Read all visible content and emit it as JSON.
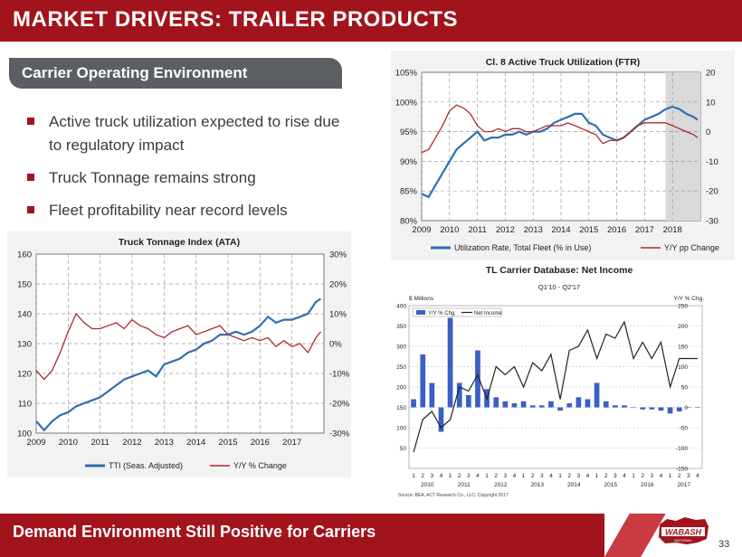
{
  "slide": {
    "title": "MARKET DRIVERS: TRAILER PRODUCTS",
    "subheading": "Carrier Operating Environment",
    "bullets": [
      "Active truck utilization expected to rise due to regulatory impact",
      "Truck Tonnage remains strong",
      "Fleet profitability near record levels"
    ],
    "footer": "Demand Environment Still Positive for Carriers",
    "page_number": "33",
    "logo_text": "WABASH",
    "logo_sub": "NATIONAL",
    "colors": {
      "brand_red": "#a1141c",
      "line_blue": "#2e6fb0",
      "line_red": "#b0282e",
      "bar_blue": "#3a5fc7"
    }
  },
  "chart_data": [
    {
      "type": "line",
      "title": "Truck Tonnage Index (ATA)",
      "x_range": [
        2009,
        2018
      ],
      "x_ticks": [
        "2009",
        "2010",
        "2011",
        "2012",
        "2013",
        "2014",
        "2015",
        "2016",
        "2017"
      ],
      "y_left_ticks": [
        "100",
        "110",
        "120",
        "130",
        "140",
        "150",
        "160"
      ],
      "y_left_range": [
        100,
        160
      ],
      "y_right_ticks": [
        "-30%",
        "-20%",
        "-10%",
        "0%",
        "10%",
        "20%",
        "30%"
      ],
      "y_right_range": [
        -30,
        30
      ],
      "grid": true,
      "legend_position": "bottom",
      "series": [
        {
          "name": "TTI (Seas. Adjusted)",
          "axis": "left",
          "color": "#2e6fb0",
          "x": [
            2009.0,
            2009.25,
            2009.5,
            2009.75,
            2010.0,
            2010.25,
            2010.5,
            2010.75,
            2011.0,
            2011.25,
            2011.5,
            2011.75,
            2012.0,
            2012.25,
            2012.5,
            2012.75,
            2013.0,
            2013.25,
            2013.5,
            2013.75,
            2014.0,
            2014.25,
            2014.5,
            2014.75,
            2015.0,
            2015.25,
            2015.5,
            2015.75,
            2016.0,
            2016.25,
            2016.5,
            2016.75,
            2017.0,
            2017.25,
            2017.5,
            2017.75,
            2017.9
          ],
          "y": [
            104,
            101,
            104,
            106,
            107,
            109,
            110,
            111,
            112,
            114,
            116,
            118,
            119,
            120,
            121,
            119,
            123,
            124,
            125,
            127,
            128,
            130,
            131,
            133,
            133,
            134,
            133,
            134,
            136,
            139,
            137,
            138,
            138,
            139,
            140,
            144,
            145
          ]
        },
        {
          "name": "Y/Y % Change",
          "axis": "right",
          "color": "#b0282e",
          "x": [
            2009.0,
            2009.25,
            2009.5,
            2009.75,
            2010.0,
            2010.25,
            2010.5,
            2010.75,
            2011.0,
            2011.25,
            2011.5,
            2011.75,
            2012.0,
            2012.25,
            2012.5,
            2012.75,
            2013.0,
            2013.25,
            2013.5,
            2013.75,
            2014.0,
            2014.25,
            2014.5,
            2014.75,
            2015.0,
            2015.25,
            2015.5,
            2015.75,
            2016.0,
            2016.25,
            2016.5,
            2016.75,
            2017.0,
            2017.25,
            2017.5,
            2017.75,
            2017.9
          ],
          "y": [
            -9,
            -12,
            -9,
            -3,
            4,
            10,
            7,
            5,
            5,
            6,
            7,
            5,
            8,
            6,
            5,
            3,
            2,
            4,
            5,
            6,
            3,
            4,
            5,
            6,
            3,
            2,
            1,
            2,
            1,
            2,
            -1,
            1,
            -1,
            0,
            -3,
            2,
            4
          ]
        }
      ]
    },
    {
      "type": "line",
      "title": "Cl. 8 Active Truck Utilization (FTR)",
      "x_range": [
        2009,
        2019
      ],
      "x_ticks": [
        "2009",
        "2010",
        "2011",
        "2012",
        "2013",
        "2014",
        "2015",
        "2016",
        "2017",
        "2018"
      ],
      "y_left_ticks": [
        "80%",
        "85%",
        "90%",
        "95%",
        "100%",
        "105%"
      ],
      "y_left_range": [
        80,
        105
      ],
      "y_right_ticks": [
        "-30",
        "-20",
        "-10",
        "0",
        "10",
        "20"
      ],
      "y_right_range": [
        -30,
        20
      ],
      "forecast_shaded_from": 2017.75,
      "grid": true,
      "legend_position": "bottom",
      "series": [
        {
          "name": "Utilization Rate, Total Fleet (% in Use)",
          "axis": "left",
          "color": "#2e6fb0",
          "x": [
            2009.0,
            2009.25,
            2009.5,
            2009.75,
            2010.0,
            2010.25,
            2010.5,
            2010.75,
            2011.0,
            2011.25,
            2011.5,
            2011.75,
            2012.0,
            2012.25,
            2012.5,
            2012.75,
            2013.0,
            2013.25,
            2013.5,
            2013.75,
            2014.0,
            2014.25,
            2014.5,
            2014.75,
            2015.0,
            2015.25,
            2015.5,
            2015.75,
            2016.0,
            2016.25,
            2016.5,
            2016.75,
            2017.0,
            2017.25,
            2017.5,
            2017.75,
            2018.0,
            2018.25,
            2018.5,
            2018.75,
            2018.9
          ],
          "y": [
            84.5,
            84,
            86,
            88,
            90,
            92,
            93,
            94,
            95,
            93.5,
            94,
            94,
            94.5,
            94.5,
            95,
            94.5,
            95,
            95,
            95.5,
            96.5,
            97,
            97.5,
            98,
            98,
            96.5,
            96,
            94.5,
            94,
            93.5,
            94,
            95,
            96,
            97,
            97.5,
            98,
            98.8,
            99.2,
            98.8,
            98,
            97.5,
            97
          ]
        },
        {
          "name": "Y/Y pp Change",
          "axis": "right",
          "color": "#b0282e",
          "x": [
            2009.0,
            2009.25,
            2009.5,
            2009.75,
            2010.0,
            2010.25,
            2010.5,
            2010.75,
            2011.0,
            2011.25,
            2011.5,
            2011.75,
            2012.0,
            2012.25,
            2012.5,
            2012.75,
            2013.0,
            2013.25,
            2013.5,
            2013.75,
            2014.0,
            2014.25,
            2014.5,
            2014.75,
            2015.0,
            2015.25,
            2015.5,
            2015.75,
            2016.0,
            2016.25,
            2016.5,
            2016.75,
            2017.0,
            2017.25,
            2017.5,
            2017.75,
            2018.0,
            2018.25,
            2018.5,
            2018.75,
            2018.9
          ],
          "y": [
            -7,
            -6,
            -2,
            2,
            7,
            9,
            8,
            6,
            2,
            0,
            0,
            1,
            0,
            1,
            1,
            0,
            0,
            1,
            2,
            2,
            2,
            3,
            2,
            1,
            0,
            -1,
            -4,
            -3,
            -3,
            -2,
            0,
            2,
            3,
            3,
            3,
            3,
            2,
            1,
            0,
            -1,
            -2
          ]
        }
      ]
    },
    {
      "type": "bar",
      "title": "TL Carrier Database: Net Income",
      "subtitle": "Q1'10 - Q2'17",
      "left_axis_label": "$ Millions",
      "right_axis_label": "Y/Y % Chg.",
      "source": "Source: BEA, ACT Research Co., LLC: Copyright 2017",
      "categories": [
        "1",
        "2",
        "3",
        "4",
        "1",
        "2",
        "3",
        "4",
        "1",
        "2",
        "3",
        "4",
        "1",
        "2",
        "3",
        "4",
        "1",
        "2",
        "3",
        "4",
        "1",
        "2",
        "3",
        "4",
        "1",
        "2",
        "3",
        "4",
        "1",
        "2",
        "3",
        "4"
      ],
      "year_labels": [
        "2010",
        "2011",
        "2012",
        "2013",
        "2014",
        "2015",
        "2016",
        "2017"
      ],
      "y_left_ticks": [
        "50",
        "100",
        "150",
        "200",
        "250",
        "300",
        "350",
        "400"
      ],
      "y_left_range": [
        0,
        400
      ],
      "y_right_ticks": [
        "-150",
        "-100",
        "-50",
        "0",
        "50",
        "100",
        "150",
        "200",
        "250"
      ],
      "y_right_range": [
        -150,
        250
      ],
      "legend_position": "top-left",
      "series": [
        {
          "name": "Y/Y % Chg.",
          "kind": "bar",
          "axis": "right",
          "color": "#3a5fc7",
          "values": [
            20,
            130,
            60,
            -60,
            220,
            60,
            30,
            140,
            45,
            25,
            15,
            10,
            15,
            5,
            5,
            15,
            -8,
            10,
            25,
            20,
            60,
            15,
            5,
            5,
            0,
            -5,
            -5,
            -8,
            -15,
            -10,
            0,
            0
          ]
        },
        {
          "name": "Net Income",
          "kind": "line",
          "axis": "left",
          "color": "#222222",
          "values": [
            40,
            120,
            140,
            100,
            120,
            200,
            190,
            230,
            170,
            250,
            230,
            250,
            200,
            260,
            240,
            280,
            170,
            290,
            300,
            340,
            270,
            330,
            320,
            360,
            270,
            310,
            270,
            310,
            200,
            270,
            270,
            270
          ]
        }
      ]
    }
  ]
}
